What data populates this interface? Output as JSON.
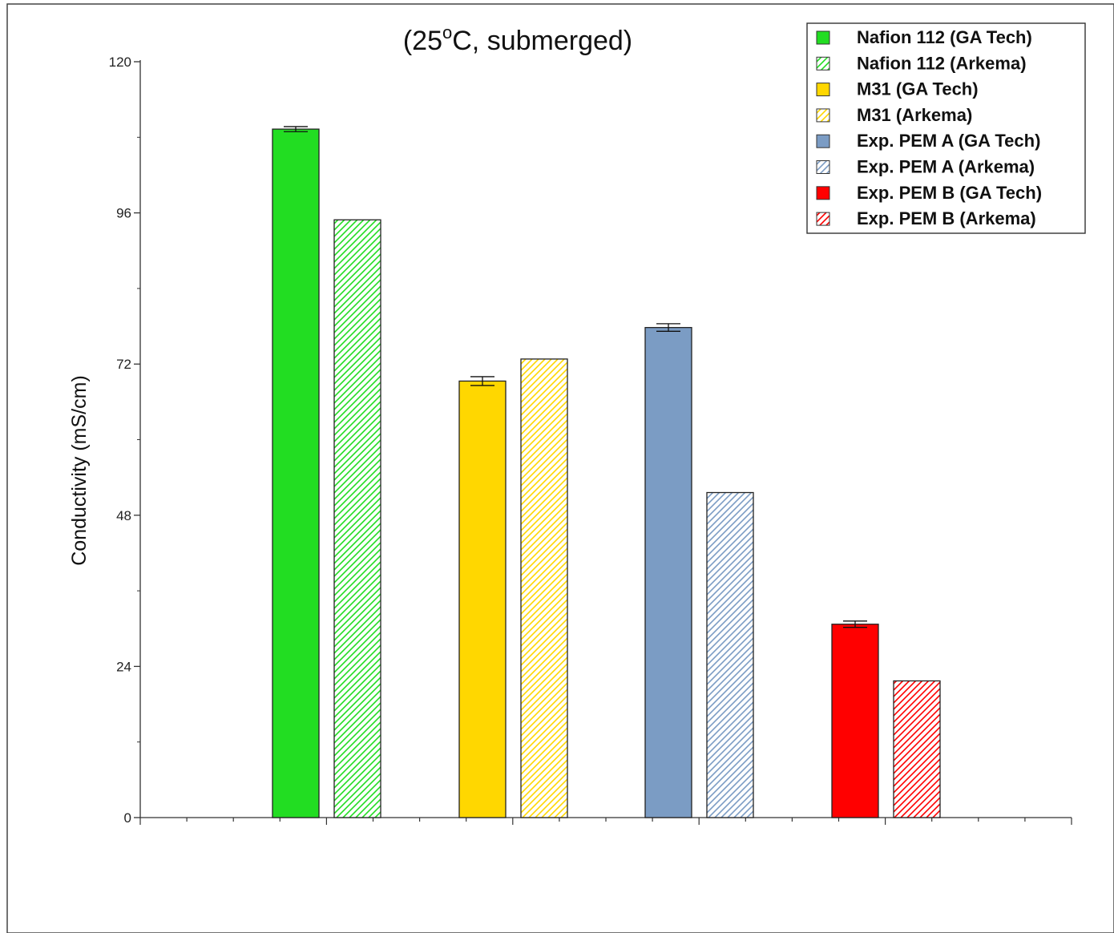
{
  "chart_data": {
    "type": "bar",
    "title": "(25",
    "title_sup": "o",
    "title_rest": "C, submerged)",
    "ylabel": "Conductivity (mS/cm)",
    "xlabel": "",
    "ylim": [
      0,
      120
    ],
    "yticks": [
      0,
      24,
      48,
      72,
      96,
      120
    ],
    "legend_position": "top-right",
    "grid": false,
    "bars": [
      {
        "name": "Nafion 112 (GA Tech)",
        "value": 109.3,
        "error": 0.4,
        "color": "#22dd22",
        "pattern": "solid"
      },
      {
        "name": "Nafion 112 (Arkema)",
        "value": 94.9,
        "error": null,
        "color": "#22dd22",
        "pattern": "hatch"
      },
      {
        "name": "M31 (GA Tech)",
        "value": 69.3,
        "error": 0.7,
        "color": "#ffd700",
        "pattern": "solid"
      },
      {
        "name": "M31 (Arkema)",
        "value": 72.8,
        "error": null,
        "color": "#ffd700",
        "pattern": "hatch"
      },
      {
        "name": "Exp. PEM A (GA Tech)",
        "value": 77.8,
        "error": 0.6,
        "color": "#7b9cc4",
        "pattern": "solid"
      },
      {
        "name": "Exp. PEM A (Arkema)",
        "value": 51.6,
        "error": null,
        "color": "#7b9cc4",
        "pattern": "hatch"
      },
      {
        "name": "Exp. PEM B (GA Tech)",
        "value": 30.7,
        "error": 0.5,
        "color": "#ff0000",
        "pattern": "solid"
      },
      {
        "name": "Exp. PEM B (Arkema)",
        "value": 21.7,
        "error": null,
        "color": "#ff0000",
        "pattern": "hatch"
      }
    ]
  }
}
